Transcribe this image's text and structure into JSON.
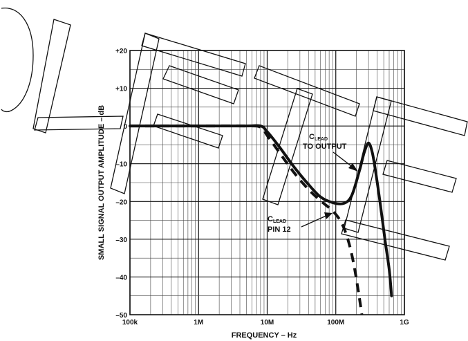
{
  "watermark": "OBSOLETE",
  "chart_data": {
    "type": "line",
    "x_scale": "log",
    "xlabel": "FREQUENCY – Hz",
    "ylabel": "SMALL SIGNAL OUTPUT AMPLITUDE – dB",
    "xlim": [
      100000,
      1000000000
    ],
    "ylim": [
      -50,
      20
    ],
    "grid": true,
    "x_ticks": [
      {
        "value": 100000,
        "label": "100k"
      },
      {
        "value": 1000000,
        "label": "1M"
      },
      {
        "value": 10000000,
        "label": "10M"
      },
      {
        "value": 100000000,
        "label": "100M"
      },
      {
        "value": 1000000000,
        "label": "1G"
      }
    ],
    "y_ticks": [
      {
        "value": 20,
        "label": "+20"
      },
      {
        "value": 10,
        "label": "+10"
      },
      {
        "value": 0,
        "label": "0"
      },
      {
        "value": -10,
        "label": "–10"
      },
      {
        "value": -20,
        "label": "–20"
      },
      {
        "value": -30,
        "label": "–30"
      },
      {
        "value": -40,
        "label": "–40"
      },
      {
        "value": -50,
        "label": "–50"
      }
    ],
    "series": [
      {
        "style": "solid",
        "x": [
          100000,
          1000000,
          5000000,
          8000000,
          10000000,
          15000000,
          25000000,
          40000000,
          60000000,
          90000000,
          130000000,
          170000000,
          220000000,
          260000000,
          300000000,
          340000000,
          380000000,
          440000000,
          520000000,
          600000000,
          650000000
        ],
        "y": [
          0,
          0,
          0,
          0,
          -1.5,
          -5.5,
          -11,
          -15.5,
          -18.8,
          -20.3,
          -20.5,
          -18.5,
          -12,
          -7,
          -4.5,
          -7,
          -12,
          -20,
          -30,
          -38,
          -45
        ]
      },
      {
        "style": "dashed",
        "x": [
          100000,
          1000000,
          5000000,
          8000000,
          10000000,
          15000000,
          25000000,
          40000000,
          60000000,
          90000000,
          120000000,
          150000000,
          180000000,
          210000000,
          240000000
        ],
        "y": [
          0,
          0,
          0,
          -0.3,
          -2.5,
          -7,
          -12.5,
          -16.8,
          -19.8,
          -22.5,
          -25.5,
          -30,
          -36,
          -43,
          -50
        ]
      }
    ],
    "annotations": [
      {
        "text_main": "C",
        "text_sub": "LEAD",
        "text_line2": "TO OUTPUT",
        "target_x": 240000000,
        "target_y": -12
      },
      {
        "text_main": "C",
        "text_sub": "LEAD",
        "text_line2": "PIN 12",
        "target_x": 140000000,
        "target_y": -23
      }
    ]
  }
}
